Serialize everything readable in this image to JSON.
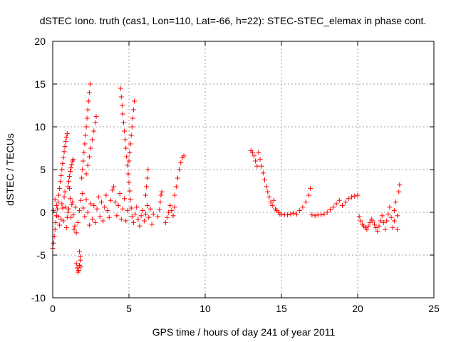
{
  "chart_data": {
    "type": "scatter",
    "title": "dSTEC Iono. truth (cas1, Lon=110, Lat=-66, h=22): STEC-STEC_elemax in phase cont.",
    "xlabel": "GPS time / hours of day 241 of year 2011",
    "ylabel": "dSTEC  / TECUs",
    "xlim": [
      0,
      25
    ],
    "ylim": [
      -10,
      20
    ],
    "xticks": [
      0,
      5,
      10,
      15,
      20,
      25
    ],
    "yticks": [
      -10,
      -5,
      0,
      5,
      10,
      15,
      20
    ],
    "grid": true,
    "marker": "+",
    "color": "#ff0000",
    "series": [
      {
        "points": [
          [
            0.0,
            -4.2
          ],
          [
            0.05,
            -3.6
          ],
          [
            0.1,
            -2.8
          ],
          [
            0.15,
            -2.0
          ],
          [
            0.2,
            -1.2
          ],
          [
            0.25,
            -0.4
          ],
          [
            0.3,
            0.4
          ],
          [
            0.35,
            1.2
          ],
          [
            0.4,
            2.0
          ],
          [
            0.45,
            2.8
          ],
          [
            0.5,
            3.6
          ],
          [
            0.55,
            4.3
          ],
          [
            0.6,
            5.0
          ],
          [
            0.65,
            5.7
          ],
          [
            0.7,
            6.4
          ],
          [
            0.75,
            7.1
          ],
          [
            0.8,
            7.7
          ],
          [
            0.85,
            8.3
          ],
          [
            0.9,
            8.8
          ],
          [
            0.95,
            9.2
          ],
          [
            0.05,
            0.2
          ],
          [
            0.15,
            1.5
          ],
          [
            0.25,
            0.8
          ],
          [
            0.35,
            -0.5
          ],
          [
            0.45,
            -1.5
          ],
          [
            0.55,
            -0.8
          ],
          [
            0.65,
            0.5
          ],
          [
            0.75,
            1.8
          ],
          [
            0.85,
            0.6
          ],
          [
            0.95,
            -0.6
          ],
          [
            1.05,
            0.4
          ],
          [
            1.15,
            1.6
          ],
          [
            1.25,
            0.9
          ],
          [
            1.35,
            -0.3
          ],
          [
            1.45,
            -1.6
          ],
          [
            1.55,
            -2.4
          ],
          [
            1.65,
            -1.2
          ],
          [
            1.75,
            0.2
          ],
          [
            1.85,
            1.4
          ],
          [
            1.95,
            2.2
          ],
          [
            0.6,
            1.0
          ],
          [
            0.7,
            -1.0
          ],
          [
            0.8,
            2.4
          ],
          [
            0.9,
            -1.8
          ],
          [
            1.0,
            0.0
          ],
          [
            1.1,
            2.8
          ],
          [
            1.2,
            -0.6
          ],
          [
            1.3,
            1.2
          ],
          [
            1.4,
            -2.0
          ],
          [
            1.5,
            0.6
          ],
          [
            1.0,
            3.0
          ],
          [
            1.05,
            3.6
          ],
          [
            1.1,
            4.2
          ],
          [
            1.15,
            4.8
          ],
          [
            1.2,
            5.2
          ],
          [
            1.25,
            5.6
          ],
          [
            1.3,
            6.0
          ],
          [
            1.35,
            6.2
          ],
          [
            1.55,
            -6.0
          ],
          [
            1.6,
            -6.5
          ],
          [
            1.65,
            -7.0
          ],
          [
            1.7,
            -6.8
          ],
          [
            1.75,
            -6.2
          ],
          [
            1.8,
            -5.6
          ],
          [
            1.85,
            -6.4
          ],
          [
            1.75,
            -4.6
          ],
          [
            1.8,
            -5.2
          ],
          [
            1.9,
            4.0
          ],
          [
            1.95,
            5.0
          ],
          [
            2.0,
            6.0
          ],
          [
            2.05,
            7.0
          ],
          [
            2.1,
            8.0
          ],
          [
            2.15,
            9.0
          ],
          [
            2.2,
            10.0
          ],
          [
            2.25,
            11.0
          ],
          [
            2.3,
            12.0
          ],
          [
            2.35,
            13.0
          ],
          [
            2.4,
            14.0
          ],
          [
            2.45,
            15.0
          ],
          [
            2.2,
            4.5
          ],
          [
            2.3,
            5.5
          ],
          [
            2.4,
            6.5
          ],
          [
            2.5,
            7.5
          ],
          [
            2.6,
            8.5
          ],
          [
            2.7,
            9.5
          ],
          [
            2.8,
            10.5
          ],
          [
            2.85,
            11.2
          ],
          [
            2.0,
            0.5
          ],
          [
            2.1,
            -0.5
          ],
          [
            2.2,
            1.5
          ],
          [
            2.3,
            0.0
          ],
          [
            2.4,
            -1.5
          ],
          [
            2.5,
            1.0
          ],
          [
            2.6,
            -0.8
          ],
          [
            2.7,
            0.8
          ],
          [
            2.8,
            -1.2
          ],
          [
            2.9,
            0.4
          ],
          [
            3.0,
            1.8
          ],
          [
            3.1,
            -0.5
          ],
          [
            3.2,
            1.2
          ],
          [
            3.3,
            -1.0
          ],
          [
            3.4,
            0.6
          ],
          [
            3.5,
            2.0
          ],
          [
            3.6,
            0.2
          ],
          [
            3.7,
            -0.6
          ],
          [
            3.8,
            1.4
          ],
          [
            3.9,
            2.6
          ],
          [
            4.0,
            3.0
          ],
          [
            4.1,
            1.2
          ],
          [
            4.2,
            -0.4
          ],
          [
            4.3,
            0.8
          ],
          [
            4.4,
            2.2
          ],
          [
            4.5,
            -0.8
          ],
          [
            4.6,
            0.4
          ],
          [
            4.7,
            1.6
          ],
          [
            4.8,
            -1.0
          ],
          [
            4.9,
            0.2
          ],
          [
            4.45,
            14.5
          ],
          [
            4.5,
            13.5
          ],
          [
            4.55,
            12.5
          ],
          [
            4.6,
            11.5
          ],
          [
            4.65,
            10.5
          ],
          [
            4.7,
            9.5
          ],
          [
            4.75,
            8.5
          ],
          [
            4.8,
            7.5
          ],
          [
            4.85,
            6.5
          ],
          [
            4.9,
            5.5
          ],
          [
            4.95,
            4.5
          ],
          [
            5.0,
            3.5
          ],
          [
            5.05,
            2.5
          ],
          [
            5.1,
            1.5
          ],
          [
            5.15,
            0.5
          ],
          [
            5.0,
            6.0
          ],
          [
            5.05,
            7.0
          ],
          [
            5.1,
            8.0
          ],
          [
            5.15,
            9.0
          ],
          [
            5.2,
            10.0
          ],
          [
            5.25,
            11.0
          ],
          [
            5.3,
            12.0
          ],
          [
            5.35,
            13.0
          ],
          [
            5.2,
            -0.5
          ],
          [
            5.3,
            -1.2
          ],
          [
            5.4,
            -0.2
          ],
          [
            5.5,
            0.6
          ],
          [
            5.6,
            -0.8
          ],
          [
            5.7,
            -1.6
          ],
          [
            5.8,
            -0.4
          ],
          [
            5.9,
            0.2
          ],
          [
            6.0,
            -1.0
          ],
          [
            6.1,
            -0.2
          ],
          [
            6.2,
            0.8
          ],
          [
            6.3,
            -0.6
          ],
          [
            6.4,
            0.4
          ],
          [
            6.5,
            -1.4
          ],
          [
            6.6,
            -0.2
          ],
          [
            6.1,
            2.0
          ],
          [
            6.15,
            3.0
          ],
          [
            6.2,
            4.0
          ],
          [
            6.25,
            5.0
          ],
          [
            6.9,
            -0.5
          ],
          [
            7.0,
            0.3
          ],
          [
            7.05,
            1.2
          ],
          [
            7.1,
            2.0
          ],
          [
            7.15,
            2.4
          ],
          [
            7.4,
            -1.2
          ],
          [
            7.5,
            -0.6
          ],
          [
            7.6,
            0.0
          ],
          [
            7.7,
            0.8
          ],
          [
            7.8,
            0.2
          ],
          [
            7.9,
            -0.4
          ],
          [
            8.0,
            0.6
          ],
          [
            8.0,
            2.0
          ],
          [
            8.1,
            3.0
          ],
          [
            8.2,
            4.0
          ],
          [
            8.3,
            5.0
          ],
          [
            8.4,
            5.8
          ],
          [
            8.5,
            6.4
          ],
          [
            8.6,
            6.6
          ],
          [
            13.0,
            7.2
          ],
          [
            13.1,
            7.0
          ],
          [
            13.2,
            6.6
          ],
          [
            13.3,
            6.0
          ],
          [
            13.4,
            5.4
          ],
          [
            13.5,
            7.0
          ],
          [
            13.6,
            6.2
          ],
          [
            13.7,
            5.4
          ],
          [
            13.8,
            4.6
          ],
          [
            13.9,
            3.8
          ],
          [
            14.0,
            3.0
          ],
          [
            14.1,
            2.4
          ],
          [
            14.2,
            1.8
          ],
          [
            14.3,
            1.2
          ],
          [
            14.4,
            0.8
          ],
          [
            14.5,
            1.4
          ],
          [
            14.6,
            0.4
          ],
          [
            14.7,
            0.2
          ],
          [
            14.8,
            0.0
          ],
          [
            14.9,
            -0.2
          ],
          [
            15.0,
            -0.2
          ],
          [
            15.2,
            -0.3
          ],
          [
            15.4,
            -0.3
          ],
          [
            15.6,
            -0.2
          ],
          [
            15.8,
            -0.1
          ],
          [
            16.0,
            -0.2
          ],
          [
            16.2,
            0.2
          ],
          [
            16.4,
            0.6
          ],
          [
            16.6,
            1.2
          ],
          [
            16.8,
            2.0
          ],
          [
            16.9,
            2.8
          ],
          [
            17.0,
            -0.3
          ],
          [
            17.2,
            -0.4
          ],
          [
            17.4,
            -0.3
          ],
          [
            17.6,
            -0.3
          ],
          [
            17.8,
            -0.2
          ],
          [
            18.0,
            0.0
          ],
          [
            18.2,
            0.3
          ],
          [
            18.4,
            0.6
          ],
          [
            18.6,
            1.0
          ],
          [
            18.8,
            1.4
          ],
          [
            19.0,
            0.8
          ],
          [
            19.2,
            1.2
          ],
          [
            19.4,
            1.6
          ],
          [
            19.6,
            1.8
          ],
          [
            19.8,
            1.9
          ],
          [
            20.0,
            2.0
          ],
          [
            20.1,
            -0.5
          ],
          [
            20.2,
            -1.0
          ],
          [
            20.3,
            -1.4
          ],
          [
            20.4,
            -1.6
          ],
          [
            20.5,
            -1.8
          ],
          [
            20.6,
            -2.0
          ],
          [
            20.7,
            -1.6
          ],
          [
            20.8,
            -1.2
          ],
          [
            20.9,
            -0.8
          ],
          [
            21.0,
            -1.0
          ],
          [
            21.1,
            -1.4
          ],
          [
            21.2,
            -1.8
          ],
          [
            21.3,
            -2.2
          ],
          [
            21.4,
            -1.6
          ],
          [
            21.5,
            -1.0
          ],
          [
            21.6,
            -0.4
          ],
          [
            21.7,
            -1.2
          ],
          [
            21.8,
            -2.0
          ],
          [
            21.9,
            -1.0
          ],
          [
            22.0,
            -0.2
          ],
          [
            22.1,
            0.6
          ],
          [
            22.2,
            -0.6
          ],
          [
            22.3,
            -1.8
          ],
          [
            22.4,
            0.2
          ],
          [
            22.5,
            1.2
          ],
          [
            22.6,
            -0.4
          ],
          [
            22.7,
            2.4
          ],
          [
            22.75,
            3.2
          ],
          [
            22.6,
            -2.0
          ],
          [
            22.4,
            -1.0
          ]
        ]
      }
    ]
  }
}
